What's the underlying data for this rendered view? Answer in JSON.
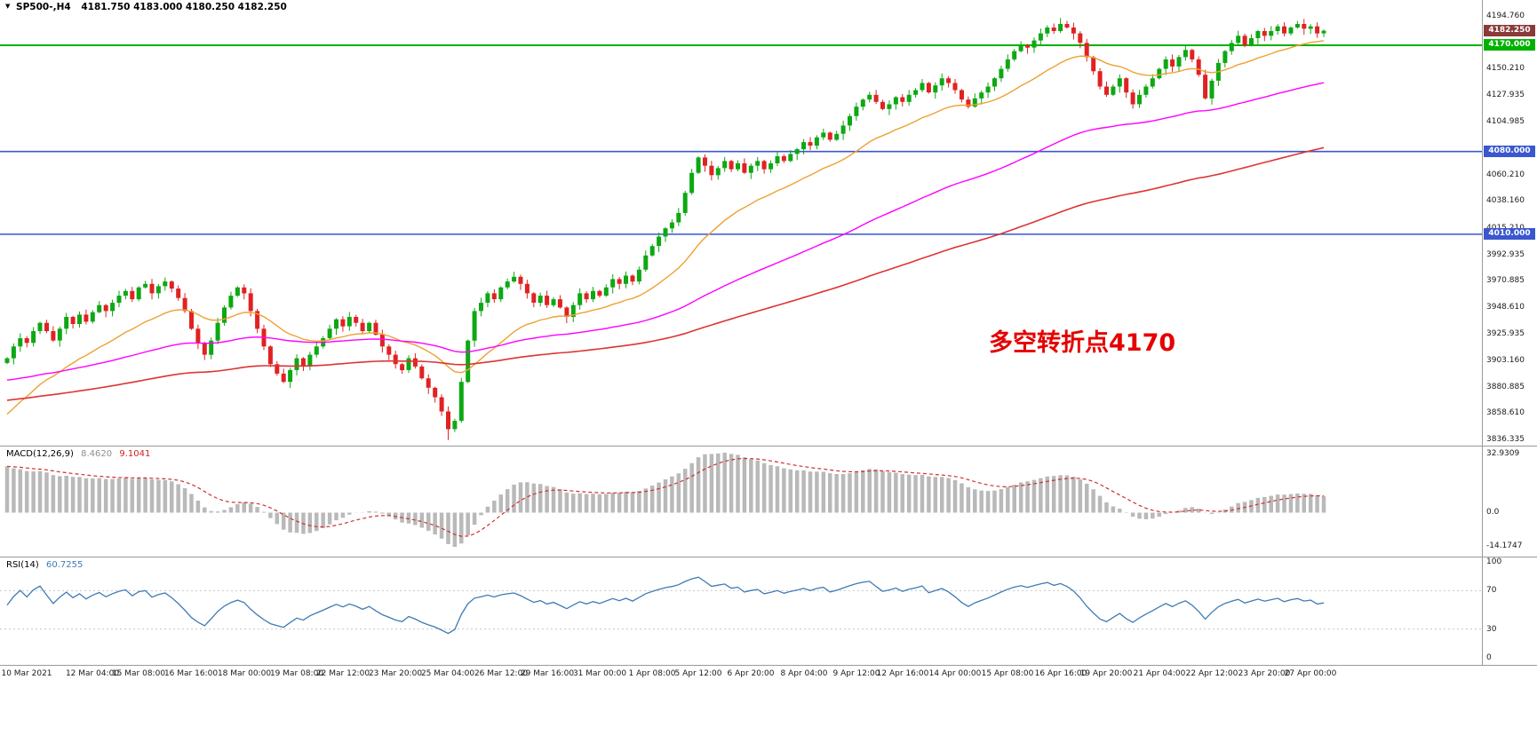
{
  "header": {
    "marker": "▼",
    "symbol": "SP500-,H4",
    "ohlc": "4181.750 4183.000 4180.250 4182.250"
  },
  "annotation": {
    "text": "多空转折点4170",
    "color": "#e60000"
  },
  "panels": {
    "macd": {
      "name": "MACD(12,26,9)",
      "value1": "8.4620",
      "value2": "9.1041",
      "axis_labels": [
        "32.9309",
        "0.0",
        "-14.1747"
      ]
    },
    "rsi": {
      "name": "RSI(14)",
      "value": "60.7255",
      "axis_labels": [
        "100",
        "70",
        "30",
        "0"
      ],
      "levels": [
        70,
        30
      ]
    }
  },
  "chart_data": {
    "type": "candlestick",
    "symbol": "SP500-",
    "timeframe": "H4",
    "title": "SP500-,H4 4181.750 4183.000 4180.250 4182.250",
    "ylim": [
      3836.335,
      4194.76
    ],
    "grid": false,
    "price_axis_labels": [
      "4194.760",
      "4150.210",
      "4127.935",
      "4104.985",
      "4060.210",
      "4038.160",
      "4015.210",
      "3992.935",
      "3970.885",
      "3948.610",
      "3925.935",
      "3903.160",
      "3880.885",
      "3858.610",
      "3836.335"
    ],
    "price_badges": [
      {
        "text": "4182.250",
        "value": 4182.25,
        "bg": "#8b3a3a"
      },
      {
        "text": "4170.000",
        "value": 4170.0,
        "bg": "#00b200"
      },
      {
        "text": "4080.000",
        "value": 4080.0,
        "bg": "#3a57cf"
      },
      {
        "text": "4010.000",
        "value": 4010.0,
        "bg": "#3a57cf"
      }
    ],
    "levels": [
      {
        "value": 4170,
        "color": "#00b200",
        "width": 2
      },
      {
        "value": 4080,
        "color": "#3a57cf",
        "width": 1.6
      },
      {
        "value": 4010,
        "color": "#3a57cf",
        "width": 1.6
      }
    ],
    "time_ticks": [
      {
        "label": "10 Mar 2021",
        "bar": 3
      },
      {
        "label": "12 Mar 04:00",
        "bar": 13
      },
      {
        "label": "15 Mar 08:00",
        "bar": 20
      },
      {
        "label": "16 Mar 16:00",
        "bar": 28
      },
      {
        "label": "18 Mar 00:00",
        "bar": 36
      },
      {
        "label": "19 Mar 08:00",
        "bar": 44
      },
      {
        "label": "22 Mar 12:00",
        "bar": 51
      },
      {
        "label": "23 Mar 20:00",
        "bar": 59
      },
      {
        "label": "25 Mar 04:00",
        "bar": 67
      },
      {
        "label": "26 Mar 12:00",
        "bar": 75
      },
      {
        "label": "29 Mar 16:00",
        "bar": 82
      },
      {
        "label": "31 Mar 00:00",
        "bar": 90
      },
      {
        "label": "1 Apr 08:00",
        "bar": 98
      },
      {
        "label": "5 Apr 12:00",
        "bar": 105
      },
      {
        "label": "6 Apr 20:00",
        "bar": 113
      },
      {
        "label": "8 Apr 04:00",
        "bar": 121
      },
      {
        "label": "9 Apr 12:00",
        "bar": 129
      },
      {
        "label": "12 Apr 16:00",
        "bar": 136
      },
      {
        "label": "14 Apr 00:00",
        "bar": 144
      },
      {
        "label": "15 Apr 08:00",
        "bar": 152
      },
      {
        "label": "16 Apr 16:00",
        "bar": 160
      },
      {
        "label": "19 Apr 20:00",
        "bar": 167
      },
      {
        "label": "21 Apr 04:00",
        "bar": 175
      },
      {
        "label": "22 Apr 12:00",
        "bar": 183
      },
      {
        "label": "23 Apr 20:00",
        "bar": 191
      },
      {
        "label": "27 Apr 00:00",
        "bar": 198
      }
    ],
    "candles": {
      "up_color": "#0da813",
      "down_color": "#e02222",
      "low_spike": {
        "index": 67,
        "extra": 6
      },
      "high_spike": {
        "index": 160,
        "extra": 4
      },
      "closes": [
        3905,
        3915,
        3922,
        3918,
        3928,
        3935,
        3928,
        3920,
        3930,
        3940,
        3934,
        3942,
        3936,
        3944,
        3950,
        3945,
        3952,
        3958,
        3962,
        3955,
        3965,
        3968,
        3960,
        3966,
        3970,
        3964,
        3956,
        3945,
        3930,
        3918,
        3908,
        3920,
        3935,
        3948,
        3958,
        3965,
        3960,
        3945,
        3930,
        3915,
        3900,
        3892,
        3885,
        3895,
        3905,
        3898,
        3908,
        3915,
        3922,
        3930,
        3938,
        3932,
        3940,
        3935,
        3928,
        3935,
        3925,
        3915,
        3908,
        3900,
        3895,
        3905,
        3898,
        3888,
        3880,
        3872,
        3860,
        3845,
        3852,
        3885,
        3920,
        3945,
        3952,
        3960,
        3955,
        3965,
        3970,
        3974,
        3968,
        3960,
        3952,
        3958,
        3950,
        3955,
        3948,
        3940,
        3950,
        3960,
        3955,
        3962,
        3958,
        3965,
        3972,
        3968,
        3975,
        3970,
        3980,
        3992,
        4000,
        4008,
        4015,
        4020,
        4028,
        4045,
        4062,
        4075,
        4068,
        4060,
        4066,
        4072,
        4065,
        4070,
        4062,
        4068,
        4072,
        4065,
        4070,
        4076,
        4072,
        4078,
        4082,
        4088,
        4085,
        4092,
        4096,
        4090,
        4095,
        4102,
        4110,
        4118,
        4124,
        4128,
        4122,
        4116,
        4120,
        4126,
        4122,
        4128,
        4132,
        4138,
        4130,
        4136,
        4142,
        4138,
        4132,
        4124,
        4118,
        4125,
        4130,
        4135,
        4142,
        4150,
        4158,
        4165,
        4170,
        4168,
        4174,
        4180,
        4185,
        4182,
        4188,
        4185,
        4180,
        4172,
        4160,
        4148,
        4135,
        4128,
        4135,
        4142,
        4130,
        4120,
        4128,
        4135,
        4142,
        4150,
        4158,
        4152,
        4160,
        4166,
        4158,
        4145,
        4125,
        4140,
        4155,
        4165,
        4172,
        4178,
        4170,
        4176,
        4182,
        4178,
        4182,
        4186,
        4180,
        4185,
        4188,
        4184,
        4186,
        4180,
        4182.25
      ]
    },
    "moving_averages": [
      {
        "name": "ma-fast-line",
        "color": "#efa132",
        "alpha": 0.09,
        "seed": 3853,
        "width": 1.4
      },
      {
        "name": "ma-mid-line",
        "color": "#ff00ff",
        "alpha": 0.026,
        "seed": 3886,
        "width": 1.4
      },
      {
        "name": "ma-slow-line",
        "color": "#dd3434",
        "alpha": 0.013,
        "seed": 3869,
        "width": 1.6
      }
    ],
    "macd_settings": {
      "fast": 12,
      "slow": 26,
      "signal": 9,
      "seed_gap": 26,
      "hist_color": "#b9b9b9",
      "signal_color": "#d03030"
    },
    "rsi_settings": {
      "period": 14,
      "color": "#3e7bb6"
    }
  }
}
